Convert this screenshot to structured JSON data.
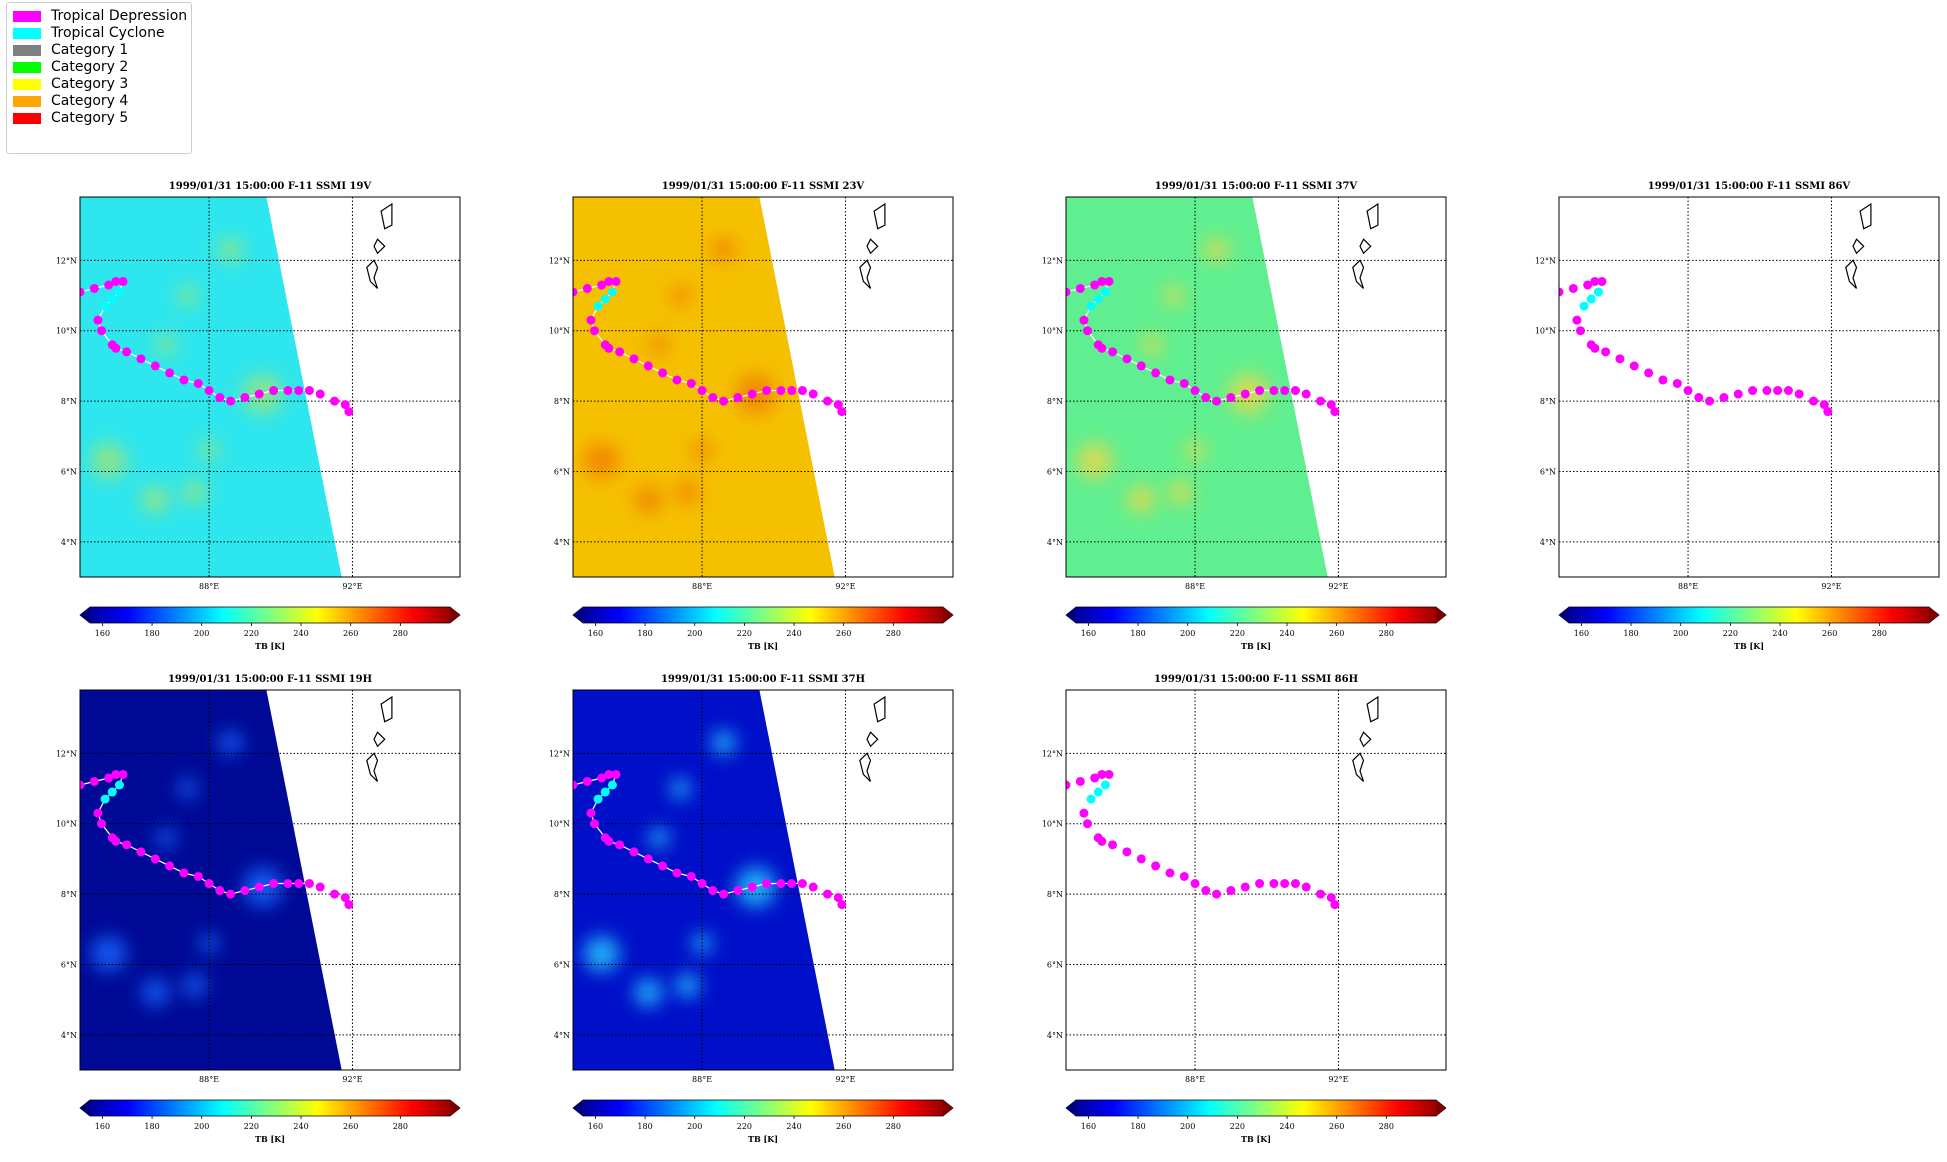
{
  "legend": {
    "items": [
      {
        "label": "Tropical Depression",
        "color": "#ff00ff"
      },
      {
        "label": "Tropical Cyclone",
        "color": "#00ffff"
      },
      {
        "label": "Category 1",
        "color": "#808080"
      },
      {
        "label": "Category 2",
        "color": "#00ff00"
      },
      {
        "label": "Category 3",
        "color": "#ffff00"
      },
      {
        "label": "Category 4",
        "color": "#ffa500"
      },
      {
        "label": "Category 5",
        "color": "#ff0000"
      }
    ]
  },
  "chart_data": [
    {
      "type": "heatmap",
      "title": "1999/01/31 15:00:00  F-11 SSMI 19V",
      "base_color": "#2ee6ee",
      "blob_color": "#9be47a",
      "swath": true
    },
    {
      "type": "heatmap",
      "title": "1999/01/31 15:00:00  F-11 SSMI 23V",
      "base_color": "#f5c000",
      "blob_color": "#f08000",
      "swath": true
    },
    {
      "type": "heatmap",
      "title": "1999/01/31 15:00:00  F-11 SSMI 37V",
      "base_color": "#60ef90",
      "blob_color": "#e9d84a",
      "swath": true
    },
    {
      "type": "heatmap",
      "title": "1999/01/31 15:00:00  F-11 SSMI 86V",
      "base_color": "#ffffff",
      "blob_color": "#ffffff",
      "swath": false
    },
    {
      "type": "heatmap",
      "title": "1999/01/31 15:00:00  F-11 SSMI 19H",
      "base_color": "#000a96",
      "blob_color": "#1565ff",
      "swath": true
    },
    {
      "type": "heatmap",
      "title": "1999/01/31 15:00:00  F-11 SSMI 37H",
      "base_color": "#0010c8",
      "blob_color": "#28c8ff",
      "swath": true
    },
    {
      "type": "heatmap",
      "title": "1999/01/31 15:00:00  F-11 SSMI 86H",
      "base_color": "#ffffff",
      "blob_color": "#ffffff",
      "swath": false
    }
  ],
  "map": {
    "lon_range": [
      84.4,
      95.0
    ],
    "lat_range": [
      3.0,
      13.8
    ],
    "x_ticks": [
      {
        "value": 88,
        "label": "88°E"
      },
      {
        "value": 92,
        "label": "92°E"
      }
    ],
    "y_ticks": [
      {
        "value": 4,
        "label": "4°N"
      },
      {
        "value": 6,
        "label": "6°N"
      },
      {
        "value": 8,
        "label": "8°N"
      },
      {
        "value": 10,
        "label": "10°N"
      },
      {
        "value": 12,
        "label": "12°N"
      }
    ],
    "grid": true
  },
  "track": {
    "line_color": "#ffffff",
    "points": [
      {
        "lon": 84.4,
        "lat": 11.1,
        "cat": "TD"
      },
      {
        "lon": 84.8,
        "lat": 11.2,
        "cat": "TD"
      },
      {
        "lon": 85.2,
        "lat": 11.3,
        "cat": "TD"
      },
      {
        "lon": 85.4,
        "lat": 11.4,
        "cat": "TD"
      },
      {
        "lon": 85.6,
        "lat": 11.4,
        "cat": "TD"
      },
      {
        "lon": 85.5,
        "lat": 11.1,
        "cat": "TC"
      },
      {
        "lon": 85.3,
        "lat": 10.9,
        "cat": "TC"
      },
      {
        "lon": 85.1,
        "lat": 10.7,
        "cat": "TC"
      },
      {
        "lon": 84.9,
        "lat": 10.3,
        "cat": "TD"
      },
      {
        "lon": 85.0,
        "lat": 10.0,
        "cat": "TD"
      },
      {
        "lon": 85.3,
        "lat": 9.6,
        "cat": "TD"
      },
      {
        "lon": 85.4,
        "lat": 9.5,
        "cat": "TD"
      },
      {
        "lon": 85.7,
        "lat": 9.4,
        "cat": "TD"
      },
      {
        "lon": 86.1,
        "lat": 9.2,
        "cat": "TD"
      },
      {
        "lon": 86.5,
        "lat": 9.0,
        "cat": "TD"
      },
      {
        "lon": 86.9,
        "lat": 8.8,
        "cat": "TD"
      },
      {
        "lon": 87.3,
        "lat": 8.6,
        "cat": "TD"
      },
      {
        "lon": 87.7,
        "lat": 8.5,
        "cat": "TD"
      },
      {
        "lon": 88.0,
        "lat": 8.3,
        "cat": "TD"
      },
      {
        "lon": 88.3,
        "lat": 8.1,
        "cat": "TD"
      },
      {
        "lon": 88.6,
        "lat": 8.0,
        "cat": "TD"
      },
      {
        "lon": 89.0,
        "lat": 8.1,
        "cat": "TD"
      },
      {
        "lon": 89.4,
        "lat": 8.2,
        "cat": "TD"
      },
      {
        "lon": 89.8,
        "lat": 8.3,
        "cat": "TD"
      },
      {
        "lon": 90.2,
        "lat": 8.3,
        "cat": "TD"
      },
      {
        "lon": 90.5,
        "lat": 8.3,
        "cat": "TD"
      },
      {
        "lon": 90.8,
        "lat": 8.3,
        "cat": "TD"
      },
      {
        "lon": 91.1,
        "lat": 8.2,
        "cat": "TD"
      },
      {
        "lon": 91.5,
        "lat": 8.0,
        "cat": "TD"
      },
      {
        "lon": 91.8,
        "lat": 7.9,
        "cat": "TD"
      },
      {
        "lon": 91.9,
        "lat": 7.7,
        "cat": "TD"
      }
    ]
  },
  "colorbar": {
    "label": "TB [K]",
    "min": 155,
    "max": 300,
    "ticks": [
      160,
      180,
      200,
      220,
      240,
      260,
      280
    ],
    "stops": [
      "#00007f",
      "#0000ff",
      "#007fff",
      "#00ffff",
      "#7fff7f",
      "#ffff00",
      "#ff7f00",
      "#ff0000",
      "#7f0000"
    ]
  }
}
